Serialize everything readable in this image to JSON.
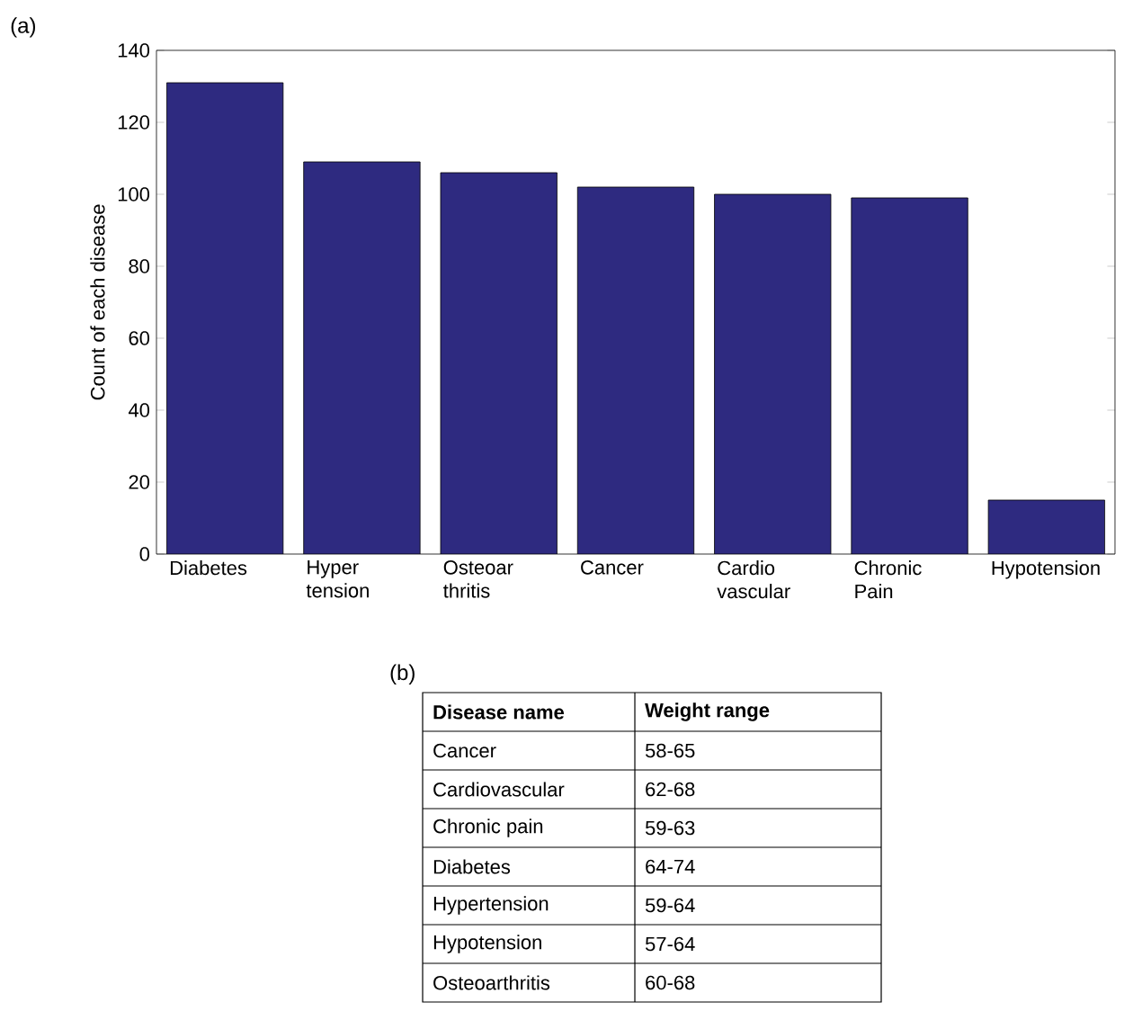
{
  "chart_data": [
    {
      "type": "bar",
      "title": "(a)",
      "ylabel": "Count of each disease",
      "categories": [
        "Diabetes",
        "Hyper tension",
        "Osteoar thritis",
        "Cancer",
        "Cardio vascular",
        "Chronic Pain",
        "Hypotension"
      ],
      "values": [
        131,
        109,
        106,
        102,
        100,
        99,
        15
      ],
      "color": "#2e2a80",
      "ylim": [
        0,
        140
      ],
      "yticks": [
        0,
        20,
        40,
        60,
        80,
        100,
        120,
        140
      ]
    },
    {
      "type": "other",
      "title": "(b)",
      "annotations": [
        "Disease name",
        "Weight range",
        "Cancer",
        "58-65",
        "Cardiovascular",
        "62-68",
        "Chronic pain",
        "59-63",
        "Diabetes",
        "64-74",
        "Hypertension",
        "59-64",
        "Hypotension",
        "57-64",
        "Osteoarthritis",
        "60-68"
      ]
    }
  ]
}
